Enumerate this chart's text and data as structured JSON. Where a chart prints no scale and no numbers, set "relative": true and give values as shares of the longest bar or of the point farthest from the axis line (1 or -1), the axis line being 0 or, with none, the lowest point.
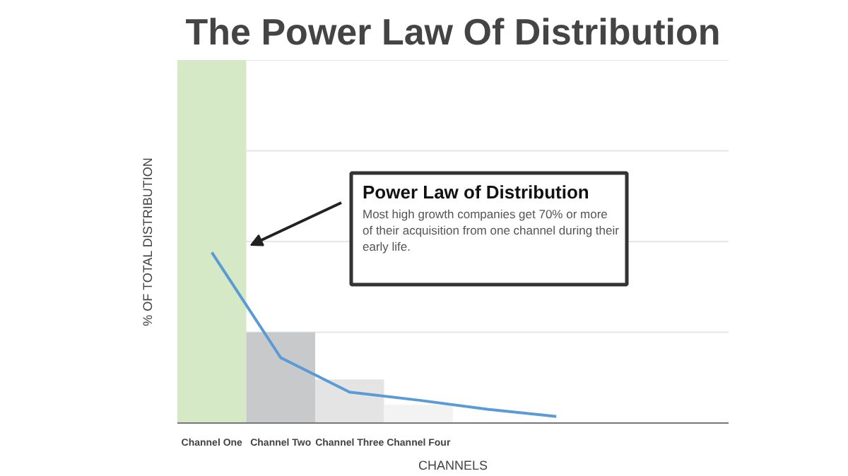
{
  "chart_data": {
    "type": "bar",
    "relative": true,
    "title": "The Power Law Of Distribution",
    "xlabel": "CHANNELS",
    "ylabel": "% OF TOTAL DISTRIBUTION",
    "categories": [
      "Channel One",
      "Channel Two",
      "Channel Three",
      "Channel Four",
      null,
      null,
      null,
      null
    ],
    "series": [
      {
        "colors": [
          "#d6e9c6",
          "#c8c9cb",
          "#e4e4e4",
          "#f3f3f3",
          null,
          null,
          null,
          null
        ],
        "values": [
          1.0,
          0.25,
          0.12,
          0.05,
          null,
          null,
          null,
          null
        ]
      },
      {
        "type": "line",
        "color": "#5b9bd5",
        "values": [
          0.47,
          0.18,
          0.085,
          0.063,
          0.038,
          0.018,
          null,
          null
        ]
      }
    ],
    "ref_lines": [
      {
        "axis": "y",
        "value": 0.25,
        "color": "#e6e6e6"
      },
      {
        "axis": "y",
        "value": 0.5,
        "color": "#e6e6e6"
      },
      {
        "axis": "y",
        "value": 0.75,
        "color": "#e6e6e6"
      },
      {
        "axis": "y",
        "value": 1.0,
        "color": "#e6e6e6"
      }
    ],
    "annotations": [
      "Power Law of Distribution",
      "Most high growth companies get 70% or more\nof their acquisition from one channel during their\nearly life."
    ]
  }
}
